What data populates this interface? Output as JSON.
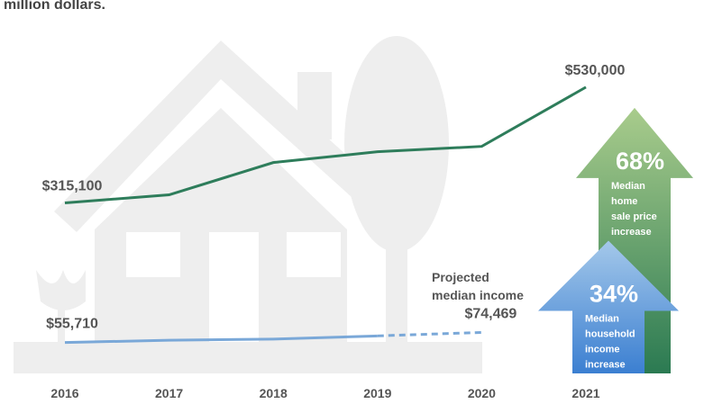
{
  "chart_data": {
    "type": "line",
    "subtitle": "million dollars.",
    "categories": [
      "2016",
      "2017",
      "2018",
      "2019",
      "2020",
      "2021"
    ],
    "ylim": [
      0,
      600000
    ],
    "series": [
      {
        "name": "Median home sale price",
        "color": "#2e7d5b",
        "values": [
          315100,
          330000,
          390000,
          410000,
          420000,
          530000
        ],
        "value_labels": [
          "$315,100",
          null,
          null,
          null,
          null,
          "$530,000"
        ]
      },
      {
        "name": "Median household income",
        "color": "#7aa8d8",
        "dash_from": 3,
        "values": [
          55710,
          60000,
          62000,
          68000,
          74469,
          null
        ],
        "value_labels": [
          "$55,710",
          null,
          null,
          null,
          "$74,469",
          null
        ]
      }
    ],
    "annotation": [
      "Projected",
      "median income"
    ],
    "arrows": [
      {
        "value": 68,
        "label": "68%",
        "text": [
          "Median",
          "home",
          "sale price",
          "increase"
        ],
        "colors": [
          "#a9cc8c",
          "#2b7a52"
        ]
      },
      {
        "value": 34,
        "label": "34%",
        "text": [
          "Median",
          "household",
          "income",
          "increase"
        ],
        "colors": [
          "#a4c8ea",
          "#3b7fd1"
        ]
      }
    ]
  }
}
